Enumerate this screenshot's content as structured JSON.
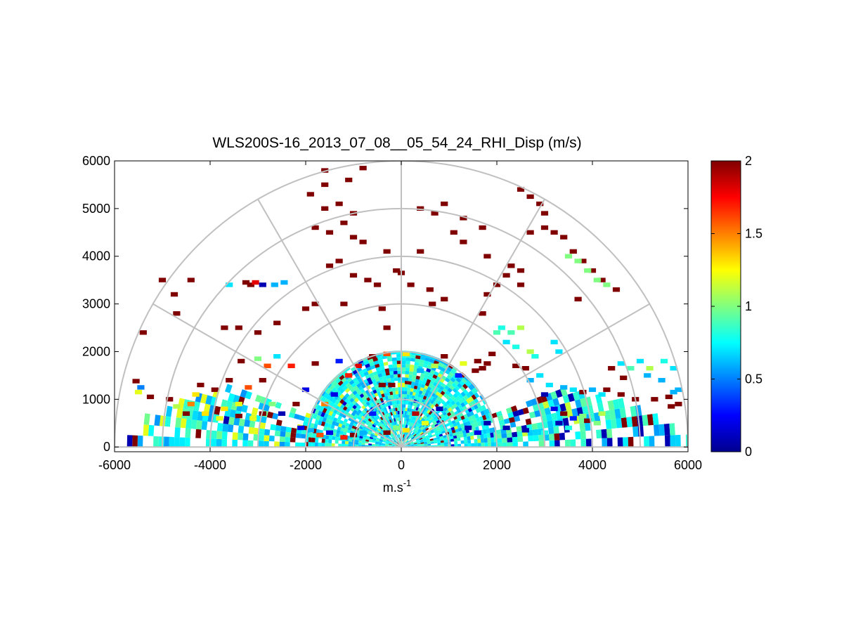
{
  "chart_data": {
    "type": "heatmap",
    "subtype": "polar-rhi-scan",
    "title": "WLS200S-16_2013_07_08__05_54_24_RHI_Disp (m/s)",
    "xlabel": "m.s",
    "xlabel_superscript": "-1",
    "ylabel": "",
    "xlim": [
      -6000,
      6000
    ],
    "ylim": [
      -100,
      6000
    ],
    "xticks": [
      -6000,
      -4000,
      -2000,
      0,
      2000,
      4000,
      6000
    ],
    "yticks": [
      0,
      1000,
      2000,
      3000,
      4000,
      5000,
      6000
    ],
    "grid_ranges": [
      1000,
      2000,
      3000,
      4000,
      5000,
      6000
    ],
    "grid_angles_deg": [
      0,
      30,
      60,
      90,
      120,
      150,
      180
    ],
    "colorbar": {
      "colormap": "jet",
      "min": 0,
      "max": 2,
      "ticks": [
        0,
        0.5,
        1,
        1.5,
        2
      ],
      "ticklabels": [
        "0",
        "0.5",
        "1",
        "1.5",
        "2"
      ]
    },
    "dense_field": {
      "description": "near-field dispersion values, mostly 0.6-0.9",
      "max_range": 2000,
      "low_elevation_extension": {
        "left_range": 5900,
        "right_range": 6000,
        "max_elev_deg": 20
      },
      "typical_value": 0.75
    },
    "points": [
      {
        "x": -5550,
        "y": 1380,
        "v": 2.0
      },
      {
        "x": -5450,
        "y": 1250,
        "v": 0.5
      },
      {
        "x": -5500,
        "y": 1150,
        "v": 1.2
      },
      {
        "x": -5250,
        "y": 1050,
        "v": 2.0
      },
      {
        "x": -4850,
        "y": 1000,
        "v": 2.0
      },
      {
        "x": -4700,
        "y": 850,
        "v": 1.1
      },
      {
        "x": -4500,
        "y": 700,
        "v": 2.0
      },
      {
        "x": -4300,
        "y": 1100,
        "v": 1.3
      },
      {
        "x": -3900,
        "y": 1200,
        "v": 2.0
      },
      {
        "x": -3700,
        "y": 800,
        "v": 1.3
      },
      {
        "x": -3400,
        "y": 900,
        "v": 1.2
      },
      {
        "x": -3200,
        "y": 1250,
        "v": 1.6
      },
      {
        "x": -2900,
        "y": 1400,
        "v": 2.0
      },
      {
        "x": -3350,
        "y": 1800,
        "v": 2.0
      },
      {
        "x": -2500,
        "y": 700,
        "v": 0.1
      },
      {
        "x": -2300,
        "y": 1700,
        "v": 1.7
      },
      {
        "x": -1800,
        "y": 1750,
        "v": 2.0
      },
      {
        "x": -3600,
        "y": 3400,
        "v": 0.7
      },
      {
        "x": -3250,
        "y": 3450,
        "v": 2.0
      },
      {
        "x": -3150,
        "y": 3400,
        "v": 2.0
      },
      {
        "x": -3050,
        "y": 3450,
        "v": 1.8
      },
      {
        "x": -2650,
        "y": 3400,
        "v": 0.6
      },
      {
        "x": -2450,
        "y": 3450,
        "v": 0.6
      },
      {
        "x": -2900,
        "y": 3400,
        "v": 0.1
      },
      {
        "x": -5000,
        "y": 3500,
        "v": 2.0
      },
      {
        "x": -4750,
        "y": 3200,
        "v": 2.0
      },
      {
        "x": -4400,
        "y": 3500,
        "v": 2.0
      },
      {
        "x": -4700,
        "y": 2800,
        "v": 2.0
      },
      {
        "x": -5400,
        "y": 2400,
        "v": 2.0
      },
      {
        "x": -3700,
        "y": 2500,
        "v": 2.0
      },
      {
        "x": -3400,
        "y": 2500,
        "v": 2.0
      },
      {
        "x": -3000,
        "y": 2400,
        "v": 2.0
      },
      {
        "x": -2600,
        "y": 2600,
        "v": 2.0
      },
      {
        "x": -2000,
        "y": 2900,
        "v": 2.0
      },
      {
        "x": -1800,
        "y": 3000,
        "v": 2.0
      },
      {
        "x": -1500,
        "y": 3800,
        "v": 2.0
      },
      {
        "x": -1300,
        "y": 3900,
        "v": 2.0
      },
      {
        "x": -1000,
        "y": 3600,
        "v": 2.0
      },
      {
        "x": -700,
        "y": 3500,
        "v": 2.0
      },
      {
        "x": -500,
        "y": 3400,
        "v": 2.0
      },
      {
        "x": -1200,
        "y": 3000,
        "v": 2.0
      },
      {
        "x": -400,
        "y": 2900,
        "v": 2.0
      },
      {
        "x": -300,
        "y": 2500,
        "v": 2.0
      },
      {
        "x": -1000,
        "y": 4400,
        "v": 2.0
      },
      {
        "x": -800,
        "y": 4300,
        "v": 2.0
      },
      {
        "x": -1200,
        "y": 4700,
        "v": 2.0
      },
      {
        "x": -1500,
        "y": 4500,
        "v": 2.0
      },
      {
        "x": -1800,
        "y": 4600,
        "v": 2.0
      },
      {
        "x": -1600,
        "y": 5000,
        "v": 2.0
      },
      {
        "x": -1300,
        "y": 5100,
        "v": 2.0
      },
      {
        "x": -1000,
        "y": 4900,
        "v": 2.0
      },
      {
        "x": -1900,
        "y": 5300,
        "v": 2.0
      },
      {
        "x": -1600,
        "y": 5500,
        "v": 2.0
      },
      {
        "x": -1100,
        "y": 5600,
        "v": 2.0
      },
      {
        "x": -1600,
        "y": 5800,
        "v": 2.0
      },
      {
        "x": -800,
        "y": 5850,
        "v": 2.0
      },
      {
        "x": -300,
        "y": 4100,
        "v": 2.0
      },
      {
        "x": -100,
        "y": 3700,
        "v": 2.0
      },
      {
        "x": 0,
        "y": 3650,
        "v": 2.0
      },
      {
        "x": 200,
        "y": 3400,
        "v": 2.0
      },
      {
        "x": 400,
        "y": 4100,
        "v": 2.0
      },
      {
        "x": 600,
        "y": 3300,
        "v": 2.0
      },
      {
        "x": 650,
        "y": 3000,
        "v": 2.0
      },
      {
        "x": 900,
        "y": 3100,
        "v": 2.0
      },
      {
        "x": 400,
        "y": 5000,
        "v": 2.0
      },
      {
        "x": 700,
        "y": 4900,
        "v": 2.0
      },
      {
        "x": 900,
        "y": 5100,
        "v": 2.0
      },
      {
        "x": 1300,
        "y": 4800,
        "v": 2.0
      },
      {
        "x": 1100,
        "y": 4500,
        "v": 2.0
      },
      {
        "x": 1700,
        "y": 4600,
        "v": 2.0
      },
      {
        "x": 1300,
        "y": 4300,
        "v": 2.0
      },
      {
        "x": 1800,
        "y": 4000,
        "v": 2.0
      },
      {
        "x": 2000,
        "y": 3400,
        "v": 2.0
      },
      {
        "x": 1800,
        "y": 3200,
        "v": 2.0
      },
      {
        "x": 1700,
        "y": 2800,
        "v": 2.0
      },
      {
        "x": 2200,
        "y": 3600,
        "v": 2.0
      },
      {
        "x": 2500,
        "y": 3700,
        "v": 2.0
      },
      {
        "x": 2500,
        "y": 3400,
        "v": 2.0
      },
      {
        "x": 2700,
        "y": 4500,
        "v": 2.0
      },
      {
        "x": 3000,
        "y": 4600,
        "v": 2.0
      },
      {
        "x": 3200,
        "y": 4500,
        "v": 2.0
      },
      {
        "x": 3400,
        "y": 4400,
        "v": 2.0
      },
      {
        "x": 3600,
        "y": 4100,
        "v": 2.0
      },
      {
        "x": 3800,
        "y": 3900,
        "v": 2.0
      },
      {
        "x": 4000,
        "y": 3700,
        "v": 2.0
      },
      {
        "x": 4200,
        "y": 3500,
        "v": 2.0
      },
      {
        "x": 3500,
        "y": 4000,
        "v": 1.0
      },
      {
        "x": 3700,
        "y": 3900,
        "v": 1.0
      },
      {
        "x": 3900,
        "y": 3700,
        "v": 1.0
      },
      {
        "x": 4100,
        "y": 3500,
        "v": 1.0
      },
      {
        "x": 4300,
        "y": 3400,
        "v": 1.0
      },
      {
        "x": 4500,
        "y": 3300,
        "v": 2.0
      },
      {
        "x": 3700,
        "y": 3100,
        "v": 2.0
      },
      {
        "x": 2300,
        "y": 3800,
        "v": 2.0
      },
      {
        "x": 2900,
        "y": 5100,
        "v": 2.0
      },
      {
        "x": 2700,
        "y": 5250,
        "v": 2.0
      },
      {
        "x": 2500,
        "y": 5400,
        "v": 2.0
      },
      {
        "x": 3000,
        "y": 4900,
        "v": 2.0
      },
      {
        "x": 2000,
        "y": 2400,
        "v": 0.9
      },
      {
        "x": 2100,
        "y": 2500,
        "v": 0.8
      },
      {
        "x": 2300,
        "y": 2400,
        "v": 0.9
      },
      {
        "x": 2500,
        "y": 2500,
        "v": 1.1
      },
      {
        "x": 2200,
        "y": 2200,
        "v": 0.7
      },
      {
        "x": 2400,
        "y": 2100,
        "v": 0.8
      },
      {
        "x": 2700,
        "y": 2000,
        "v": 1.1
      },
      {
        "x": 2800,
        "y": 1900,
        "v": 0.8
      },
      {
        "x": 3200,
        "y": 2200,
        "v": 0.7
      },
      {
        "x": 3300,
        "y": 2000,
        "v": 0.7
      },
      {
        "x": 1600,
        "y": 1800,
        "v": 2.0
      },
      {
        "x": 1700,
        "y": 1650,
        "v": 2.0
      },
      {
        "x": 1800,
        "y": 1750,
        "v": 2.0
      },
      {
        "x": 1550,
        "y": 1600,
        "v": 2.0
      },
      {
        "x": 1900,
        "y": 1950,
        "v": 2.0
      },
      {
        "x": 2400,
        "y": 1700,
        "v": 2.0
      },
      {
        "x": 2600,
        "y": 1650,
        "v": 2.0
      },
      {
        "x": 2900,
        "y": 1500,
        "v": 0.7
      },
      {
        "x": 2700,
        "y": 1400,
        "v": 0.6
      },
      {
        "x": 3100,
        "y": 1300,
        "v": 0.7
      },
      {
        "x": 3400,
        "y": 1250,
        "v": 0.6
      },
      {
        "x": 3600,
        "y": 1200,
        "v": 0.7
      },
      {
        "x": 3800,
        "y": 1150,
        "v": 2.0
      },
      {
        "x": 4000,
        "y": 1200,
        "v": 0.6
      },
      {
        "x": 4200,
        "y": 1100,
        "v": 0.7
      },
      {
        "x": 4300,
        "y": 1200,
        "v": 2.0
      },
      {
        "x": 4600,
        "y": 1100,
        "v": 2.0
      },
      {
        "x": 4900,
        "y": 1000,
        "v": 2.0
      },
      {
        "x": 5300,
        "y": 1000,
        "v": 2.0
      },
      {
        "x": 5600,
        "y": 1050,
        "v": 2.0
      },
      {
        "x": 5700,
        "y": 1150,
        "v": 0.6
      },
      {
        "x": 5800,
        "y": 1200,
        "v": 0.6
      },
      {
        "x": 5450,
        "y": 1400,
        "v": 0.6
      },
      {
        "x": 5150,
        "y": 1500,
        "v": 0.6
      },
      {
        "x": 4800,
        "y": 1650,
        "v": 0.9
      },
      {
        "x": 4600,
        "y": 1750,
        "v": 0.7
      },
      {
        "x": 4400,
        "y": 1650,
        "v": 2.0
      },
      {
        "x": 5000,
        "y": 1800,
        "v": 0.7
      },
      {
        "x": 5200,
        "y": 1650,
        "v": 1.1
      },
      {
        "x": 5500,
        "y": 1800,
        "v": 0.8
      },
      {
        "x": 5700,
        "y": 1650,
        "v": 0.7
      },
      {
        "x": 4650,
        "y": 1450,
        "v": 2.0
      },
      {
        "x": 5650,
        "y": 850,
        "v": 2.0
      },
      {
        "x": 5800,
        "y": 900,
        "v": 2.0
      },
      {
        "x": 3000,
        "y": 1100,
        "v": 0.1
      },
      {
        "x": 3200,
        "y": 800,
        "v": 0.2
      },
      {
        "x": 3400,
        "y": 700,
        "v": 2.0
      },
      {
        "x": 3600,
        "y": 600,
        "v": 0.3
      },
      {
        "x": 3900,
        "y": 550,
        "v": 2.0
      },
      {
        "x": 4100,
        "y": 500,
        "v": 1.0
      },
      {
        "x": 3300,
        "y": 500,
        "v": 0.1
      },
      {
        "x": 3000,
        "y": 300,
        "v": 0.8
      },
      {
        "x": 2600,
        "y": 350,
        "v": 0.1
      },
      {
        "x": 2200,
        "y": 400,
        "v": 0.1
      },
      {
        "x": 1800,
        "y": 500,
        "v": 0.1
      },
      {
        "x": 1600,
        "y": 300,
        "v": 0.2
      },
      {
        "x": 1400,
        "y": 400,
        "v": 0.1
      },
      {
        "x": 4200,
        "y": 700,
        "v": 1.1
      },
      {
        "x": 3800,
        "y": 650,
        "v": 1.0
      },
      {
        "x": 3500,
        "y": 400,
        "v": 0.8
      },
      {
        "x": -2100,
        "y": 400,
        "v": 0.2
      },
      {
        "x": -1900,
        "y": 350,
        "v": 0.6
      },
      {
        "x": -1700,
        "y": 250,
        "v": 1.6
      },
      {
        "x": -1500,
        "y": 300,
        "v": 0.2
      },
      {
        "x": -1200,
        "y": 200,
        "v": 1.7
      },
      {
        "x": -1000,
        "y": 250,
        "v": 2.0
      },
      {
        "x": -800,
        "y": 300,
        "v": 0.6
      },
      {
        "x": -300,
        "y": 300,
        "v": 2.0
      },
      {
        "x": -100,
        "y": 400,
        "v": 1.0
      },
      {
        "x": 100,
        "y": 350,
        "v": 1.3
      },
      {
        "x": -400,
        "y": 1300,
        "v": 2.0
      },
      {
        "x": -200,
        "y": 1300,
        "v": 2.0
      },
      {
        "x": 0,
        "y": 1300,
        "v": 1.2
      },
      {
        "x": -600,
        "y": 1900,
        "v": 2.0
      },
      {
        "x": -300,
        "y": 1950,
        "v": 1.6
      },
      {
        "x": 100,
        "y": 1950,
        "v": 1.3
      },
      {
        "x": -900,
        "y": 1700,
        "v": 1.8
      },
      {
        "x": 400,
        "y": 1600,
        "v": 0.6
      },
      {
        "x": 700,
        "y": 1700,
        "v": 1.1
      },
      {
        "x": 900,
        "y": 1900,
        "v": 2.0
      },
      {
        "x": 1300,
        "y": 1750,
        "v": 1.2
      },
      {
        "x": 1200,
        "y": 1500,
        "v": 0.3
      },
      {
        "x": -1300,
        "y": 1800,
        "v": 0.3
      },
      {
        "x": -1100,
        "y": 1500,
        "v": 1.7
      },
      {
        "x": -600,
        "y": 700,
        "v": 0.3
      },
      {
        "x": 300,
        "y": 700,
        "v": 1.9
      },
      {
        "x": 500,
        "y": 500,
        "v": 1.2
      },
      {
        "x": 800,
        "y": 800,
        "v": 0.1
      },
      {
        "x": -1400,
        "y": 1100,
        "v": 0.2
      },
      {
        "x": -1600,
        "y": 900,
        "v": 1.5
      },
      {
        "x": -2000,
        "y": 1200,
        "v": 0.2
      },
      {
        "x": -2200,
        "y": 900,
        "v": 2.0
      },
      {
        "x": -2700,
        "y": 900,
        "v": 1.0
      },
      {
        "x": -2900,
        "y": 700,
        "v": 2.0
      },
      {
        "x": -3100,
        "y": 600,
        "v": 1.2
      },
      {
        "x": -3400,
        "y": 650,
        "v": 2.0
      },
      {
        "x": -3800,
        "y": 600,
        "v": 1.2
      },
      {
        "x": -4100,
        "y": 700,
        "v": 1.3
      },
      {
        "x": -4400,
        "y": 900,
        "v": 1.5
      },
      {
        "x": -4200,
        "y": 1300,
        "v": 2.0
      },
      {
        "x": -3600,
        "y": 1400,
        "v": 2.0
      },
      {
        "x": -2800,
        "y": 1700,
        "v": 1.6
      },
      {
        "x": -2600,
        "y": 1900,
        "v": 0.7
      },
      {
        "x": -3000,
        "y": 1850,
        "v": 1.0
      }
    ]
  }
}
